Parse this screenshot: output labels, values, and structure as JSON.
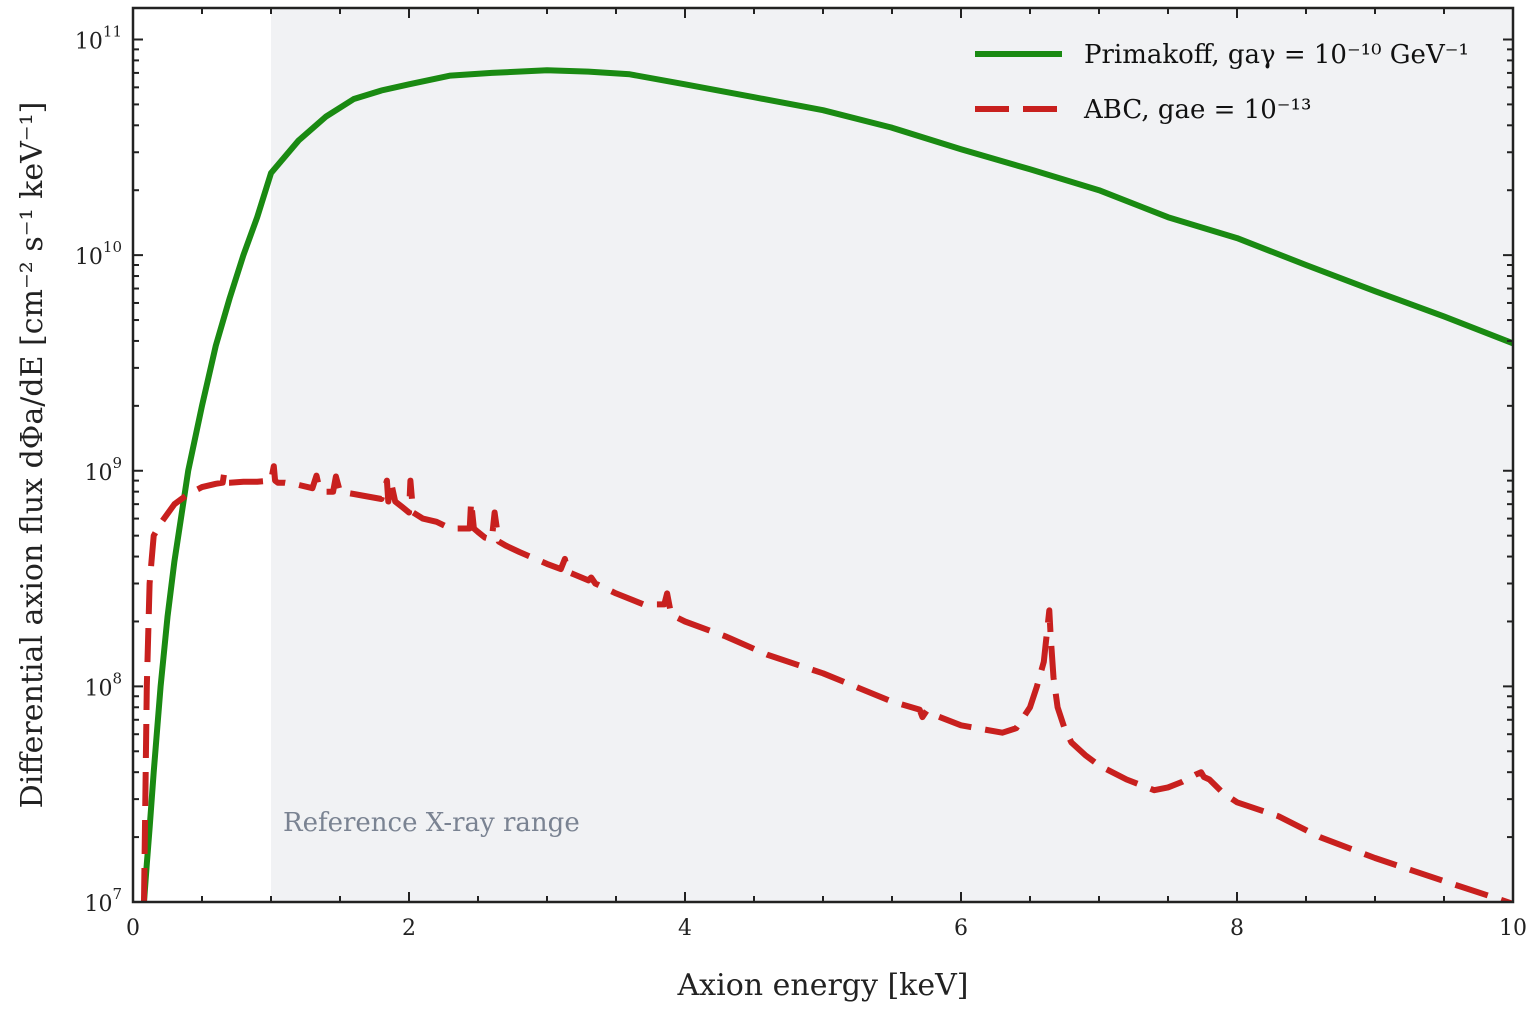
{
  "chart_data": {
    "type": "line",
    "xlabel": "Axion energy [keV]",
    "ylabel": "Differential axion flux dΦa/dE [cm⁻² s⁻¹ keV⁻¹]",
    "xlim": [
      0,
      10
    ],
    "ylim": [
      10000000,
      140000000000
    ],
    "yscale": "log",
    "x_ticks": [
      "0",
      "2",
      "4",
      "6",
      "8",
      "10"
    ],
    "y_ticks": [
      {
        "base": "10",
        "exp": "7",
        "value": 10000000
      },
      {
        "base": "10",
        "exp": "8",
        "value": 100000000
      },
      {
        "base": "10",
        "exp": "9",
        "value": 1000000000
      },
      {
        "base": "10",
        "exp": "10",
        "value": 10000000000
      },
      {
        "base": "10",
        "exp": "11",
        "value": 100000000000
      }
    ],
    "grid": false,
    "legend_position": "top-right",
    "shaded_region": {
      "x": [
        1,
        10
      ],
      "label": "Reference X-ray range",
      "color": "#f1f2f4"
    },
    "series": [
      {
        "name": "Primakoff, gaγ = 10⁻¹⁰ GeV⁻¹",
        "color": "#1a8a12",
        "style": "solid",
        "x": [
          0.05,
          0.08,
          0.1,
          0.12,
          0.15,
          0.2,
          0.25,
          0.3,
          0.4,
          0.5,
          0.6,
          0.7,
          0.8,
          0.9,
          1.0,
          1.2,
          1.4,
          1.6,
          1.8,
          2.0,
          2.3,
          2.6,
          3.0,
          3.3,
          3.6,
          4.0,
          4.5,
          5.0,
          5.5,
          6.0,
          6.5,
          7.0,
          7.5,
          8.0,
          8.5,
          9.0,
          9.5,
          10.0
        ],
        "y": [
          5000000,
          10000000,
          15000000,
          22000000,
          40000000,
          100000000,
          210000000,
          380000000,
          1000000000,
          2000000000,
          3800000000,
          6300000000,
          10000000000,
          15000000000,
          24000000000,
          34000000000,
          44000000000,
          53000000000,
          58000000000,
          62000000000,
          68000000000,
          70000000000,
          72000000000,
          71000000000,
          69000000000,
          62000000000,
          54000000000,
          47000000000,
          39000000000,
          31000000000,
          25000000000,
          20000000000,
          15000000000,
          12000000000,
          9000000000,
          6800000000,
          5200000000,
          3900000000
        ]
      },
      {
        "name": "ABC, gae = 10⁻¹³",
        "color": "#c8201e",
        "style": "dashed",
        "x": [
          0.08,
          0.1,
          0.12,
          0.15,
          0.2,
          0.3,
          0.4,
          0.5,
          0.6,
          0.65,
          0.66,
          0.67,
          0.7,
          0.8,
          0.9,
          1.0,
          1.02,
          1.03,
          1.05,
          1.1,
          1.2,
          1.3,
          1.33,
          1.35,
          1.4,
          1.45,
          1.47,
          1.5,
          1.6,
          1.7,
          1.8,
          1.84,
          1.85,
          1.87,
          1.9,
          1.95,
          2.0,
          2.01,
          2.03,
          2.1,
          2.2,
          2.3,
          2.44,
          2.45,
          2.47,
          2.5,
          2.55,
          2.6,
          2.62,
          2.65,
          2.7,
          2.8,
          3.0,
          3.1,
          3.13,
          3.15,
          3.2,
          3.3,
          3.32,
          3.35,
          3.5,
          3.7,
          3.85,
          3.87,
          3.9,
          4.0,
          4.3,
          4.6,
          5.0,
          5.5,
          5.7,
          5.72,
          5.75,
          5.8,
          6.0,
          6.3,
          6.4,
          6.5,
          6.55,
          6.6,
          6.64,
          6.65,
          6.67,
          6.7,
          6.75,
          6.8,
          6.9,
          7.0,
          7.2,
          7.4,
          7.5,
          7.6,
          7.7,
          7.74,
          7.76,
          7.8,
          7.9,
          8.0,
          8.3,
          8.6,
          9.0,
          9.5,
          9.9,
          10.0
        ],
        "y": [
          10000000,
          100000000,
          300000000,
          500000000,
          570000000,
          700000000,
          780000000,
          840000000,
          870000000,
          880000000,
          970000000,
          880000000,
          880000000,
          890000000,
          890000000,
          900000000,
          1050000000,
          900000000,
          880000000,
          880000000,
          860000000,
          830000000,
          950000000,
          830000000,
          800000000,
          800000000,
          940000000,
          800000000,
          780000000,
          760000000,
          740000000,
          900000000,
          720000000,
          880000000,
          720000000,
          680000000,
          640000000,
          900000000,
          640000000,
          600000000,
          580000000,
          540000000,
          540000000,
          720000000,
          540000000,
          520000000,
          490000000,
          480000000,
          640000000,
          470000000,
          450000000,
          420000000,
          370000000,
          350000000,
          390000000,
          340000000,
          330000000,
          310000000,
          320000000,
          300000000,
          270000000,
          240000000,
          240000000,
          270000000,
          215000000,
          200000000,
          170000000,
          140000000,
          115000000,
          85000000,
          78000000,
          72000000,
          77000000,
          74000000,
          66000000,
          61000000,
          64000000,
          80000000,
          100000000,
          130000000,
          225000000,
          170000000,
          110000000,
          80000000,
          64000000,
          55000000,
          48000000,
          43000000,
          37000000,
          33000000,
          34000000,
          36000000,
          39000000,
          40000000,
          38000000,
          37000000,
          32000000,
          29000000,
          25000000,
          20000000,
          16000000,
          12500000,
          10300000,
          9800000
        ]
      }
    ]
  }
}
